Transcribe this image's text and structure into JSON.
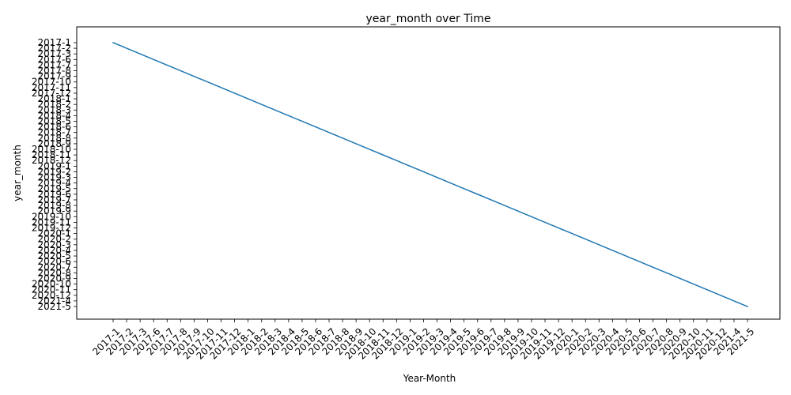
{
  "chart_data": {
    "type": "line",
    "title": "year_month over Time",
    "xlabel": "Year-Month",
    "ylabel": "year_month",
    "grid": false,
    "legend": "none",
    "categories": [
      "2017-1",
      "2017-2",
      "2017-3",
      "2017-6",
      "2017-7",
      "2017-8",
      "2017-9",
      "2017-10",
      "2017-11",
      "2017-12",
      "2018-1",
      "2018-2",
      "2018-3",
      "2018-4",
      "2018-5",
      "2018-6",
      "2018-7",
      "2018-8",
      "2018-9",
      "2018-10",
      "2018-11",
      "2018-12",
      "2019-1",
      "2019-2",
      "2019-3",
      "2019-4",
      "2019-5",
      "2019-6",
      "2019-7",
      "2019-8",
      "2019-9",
      "2019-10",
      "2019-11",
      "2019-12",
      "2020-1",
      "2020-2",
      "2020-3",
      "2020-4",
      "2020-5",
      "2020-6",
      "2020-7",
      "2020-8",
      "2020-9",
      "2020-10",
      "2020-11",
      "2020-12",
      "2021-4",
      "2021-5"
    ],
    "series": [
      {
        "color": "#1f77b4",
        "values": [
          "2017-1",
          "2017-2",
          "2017-3",
          "2017-6",
          "2017-7",
          "2017-8",
          "2017-9",
          "2017-10",
          "2017-11",
          "2017-12",
          "2018-1",
          "2018-2",
          "2018-3",
          "2018-4",
          "2018-5",
          "2018-6",
          "2018-7",
          "2018-8",
          "2018-9",
          "2018-10",
          "2018-11",
          "2018-12",
          "2019-1",
          "2019-2",
          "2019-3",
          "2019-4",
          "2019-5",
          "2019-6",
          "2019-7",
          "2019-8",
          "2019-9",
          "2019-10",
          "2019-11",
          "2019-12",
          "2020-1",
          "2020-2",
          "2020-3",
          "2020-4",
          "2020-5",
          "2020-6",
          "2020-7",
          "2020-8",
          "2020-9",
          "2020-10",
          "2020-11",
          "2020-12",
          "2021-4",
          "2021-5"
        ]
      }
    ],
    "y_categories": [
      "2017-1",
      "2017-2",
      "2017-3",
      "2017-6",
      "2017-7",
      "2017-8",
      "2017-9",
      "2017-10",
      "2017-11",
      "2017-12",
      "2018-1",
      "2018-2",
      "2018-3",
      "2018-4",
      "2018-5",
      "2018-6",
      "2018-7",
      "2018-8",
      "2018-9",
      "2018-10",
      "2018-11",
      "2018-12",
      "2019-1",
      "2019-2",
      "2019-3",
      "2019-4",
      "2019-5",
      "2019-6",
      "2019-7",
      "2019-8",
      "2019-9",
      "2019-10",
      "2019-11",
      "2019-12",
      "2020-1",
      "2020-2",
      "2020-3",
      "2020-4",
      "2020-5",
      "2020-6",
      "2020-7",
      "2020-8",
      "2020-9",
      "2020-10",
      "2020-11",
      "2020-12",
      "2021-4",
      "2021-5"
    ],
    "y_axis_order": "first-at-top"
  }
}
